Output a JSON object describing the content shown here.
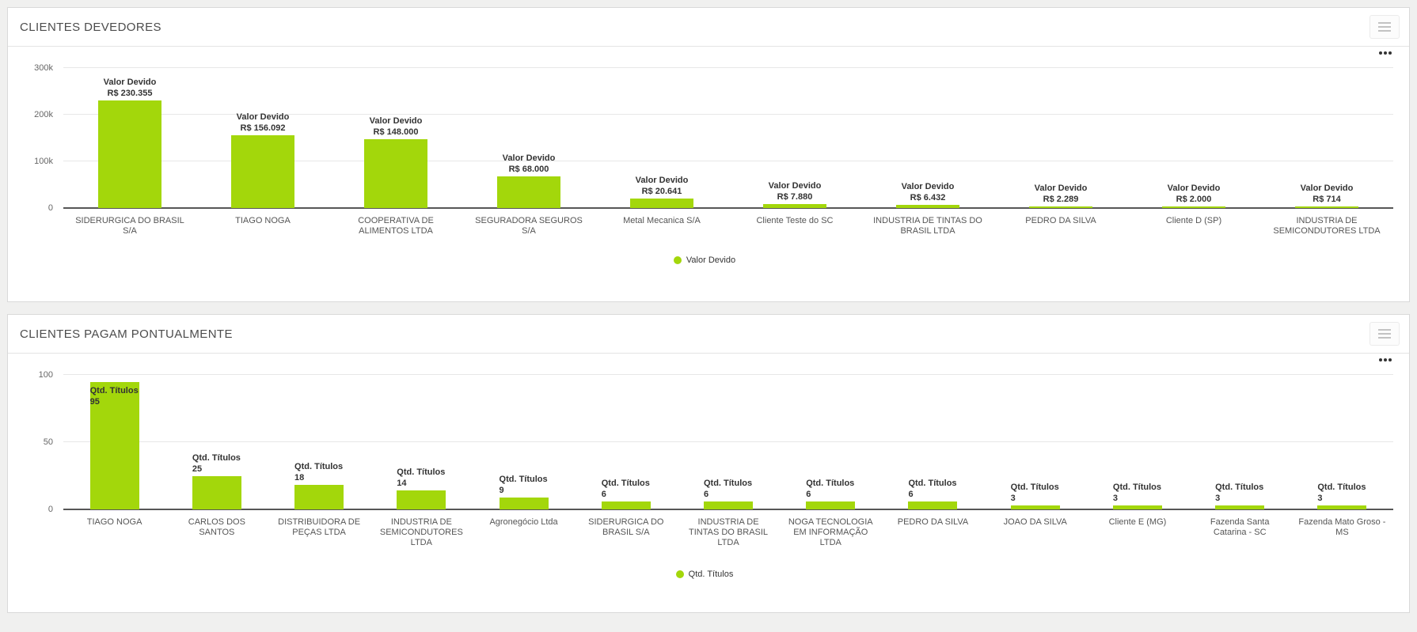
{
  "icons": {
    "panel_menu": "hamburger-icon",
    "context_menu": "ellipsis-icon",
    "legend_marker": "circle-dot-icon"
  },
  "colors": {
    "bar_green": "#a3d70b",
    "panel_background": "#ffffff",
    "page_background": "#f0f0ef",
    "axis_line": "#565656",
    "gridline": "#e7e7e7"
  },
  "chart_data": [
    {
      "type": "bar",
      "title": "CLIENTES DEVEDORES",
      "series_name": "Valor Devido",
      "categories": [
        "SIDERURGICA DO BRASIL S/A",
        "TIAGO NOGA",
        "COOPERATIVA DE ALIMENTOS LTDA",
        "SEGURADORA SEGUROS S/A",
        "Metal Mecanica S/A",
        "Cliente Teste do SC",
        "INDUSTRIA DE TINTAS DO BRASIL LTDA",
        "PEDRO DA SILVA",
        "Cliente D (SP)",
        "INDUSTRIA DE SEMICONDUTORES LTDA"
      ],
      "values": [
        230355,
        156092,
        148000,
        68000,
        20641,
        7880,
        6432,
        2289,
        2000,
        714
      ],
      "value_labels": [
        "R$ 230.355",
        "R$ 156.092",
        "R$ 148.000",
        "R$ 68.000",
        "R$ 20.641",
        "R$ 7.880",
        "R$ 6.432",
        "R$ 2.289",
        "R$ 2.000",
        "R$ 714"
      ],
      "xlabel": "",
      "ylabel": "",
      "ylim": [
        0,
        300000
      ],
      "yticks": [
        0,
        100000,
        200000,
        300000
      ],
      "ytick_labels": [
        "0",
        "100k",
        "200k",
        "300k"
      ],
      "grid": true,
      "legend": [
        "Valor Devido"
      ],
      "legend_position": "bottom-center",
      "bar_color": "#a3d70b",
      "label_align": "center"
    },
    {
      "type": "bar",
      "title": "CLIENTES PAGAM PONTUALMENTE",
      "series_name": "Qtd. Títulos",
      "categories": [
        "TIAGO NOGA",
        "CARLOS DOS SANTOS",
        "DISTRIBUIDORA DE PEÇAS LTDA",
        "INDUSTRIA DE SEMICONDUTORES LTDA",
        "Agronegócio Ltda",
        "SIDERURGICA DO BRASIL S/A",
        "INDUSTRIA DE TINTAS DO BRASIL LTDA",
        "NOGA TECNOLOGIA EM INFORMAÇÃO LTDA",
        "PEDRO DA SILVA",
        "JOAO DA SILVA",
        "Cliente E (MG)",
        "Fazenda Santa Catarina - SC",
        "Fazenda Mato Groso - MS"
      ],
      "values": [
        95,
        25,
        18,
        14,
        9,
        6,
        6,
        6,
        6,
        3,
        3,
        3,
        3
      ],
      "value_labels": [
        "95",
        "25",
        "18",
        "14",
        "9",
        "6",
        "6",
        "6",
        "6",
        "3",
        "3",
        "3",
        "3"
      ],
      "xlabel": "",
      "ylabel": "",
      "ylim": [
        0,
        100
      ],
      "yticks": [
        0,
        50,
        100
      ],
      "ytick_labels": [
        "0",
        "50",
        "100"
      ],
      "grid": true,
      "legend": [
        "Qtd. Títulos"
      ],
      "legend_position": "bottom-center",
      "bar_color": "#a3d70b",
      "label_align": "left"
    }
  ]
}
